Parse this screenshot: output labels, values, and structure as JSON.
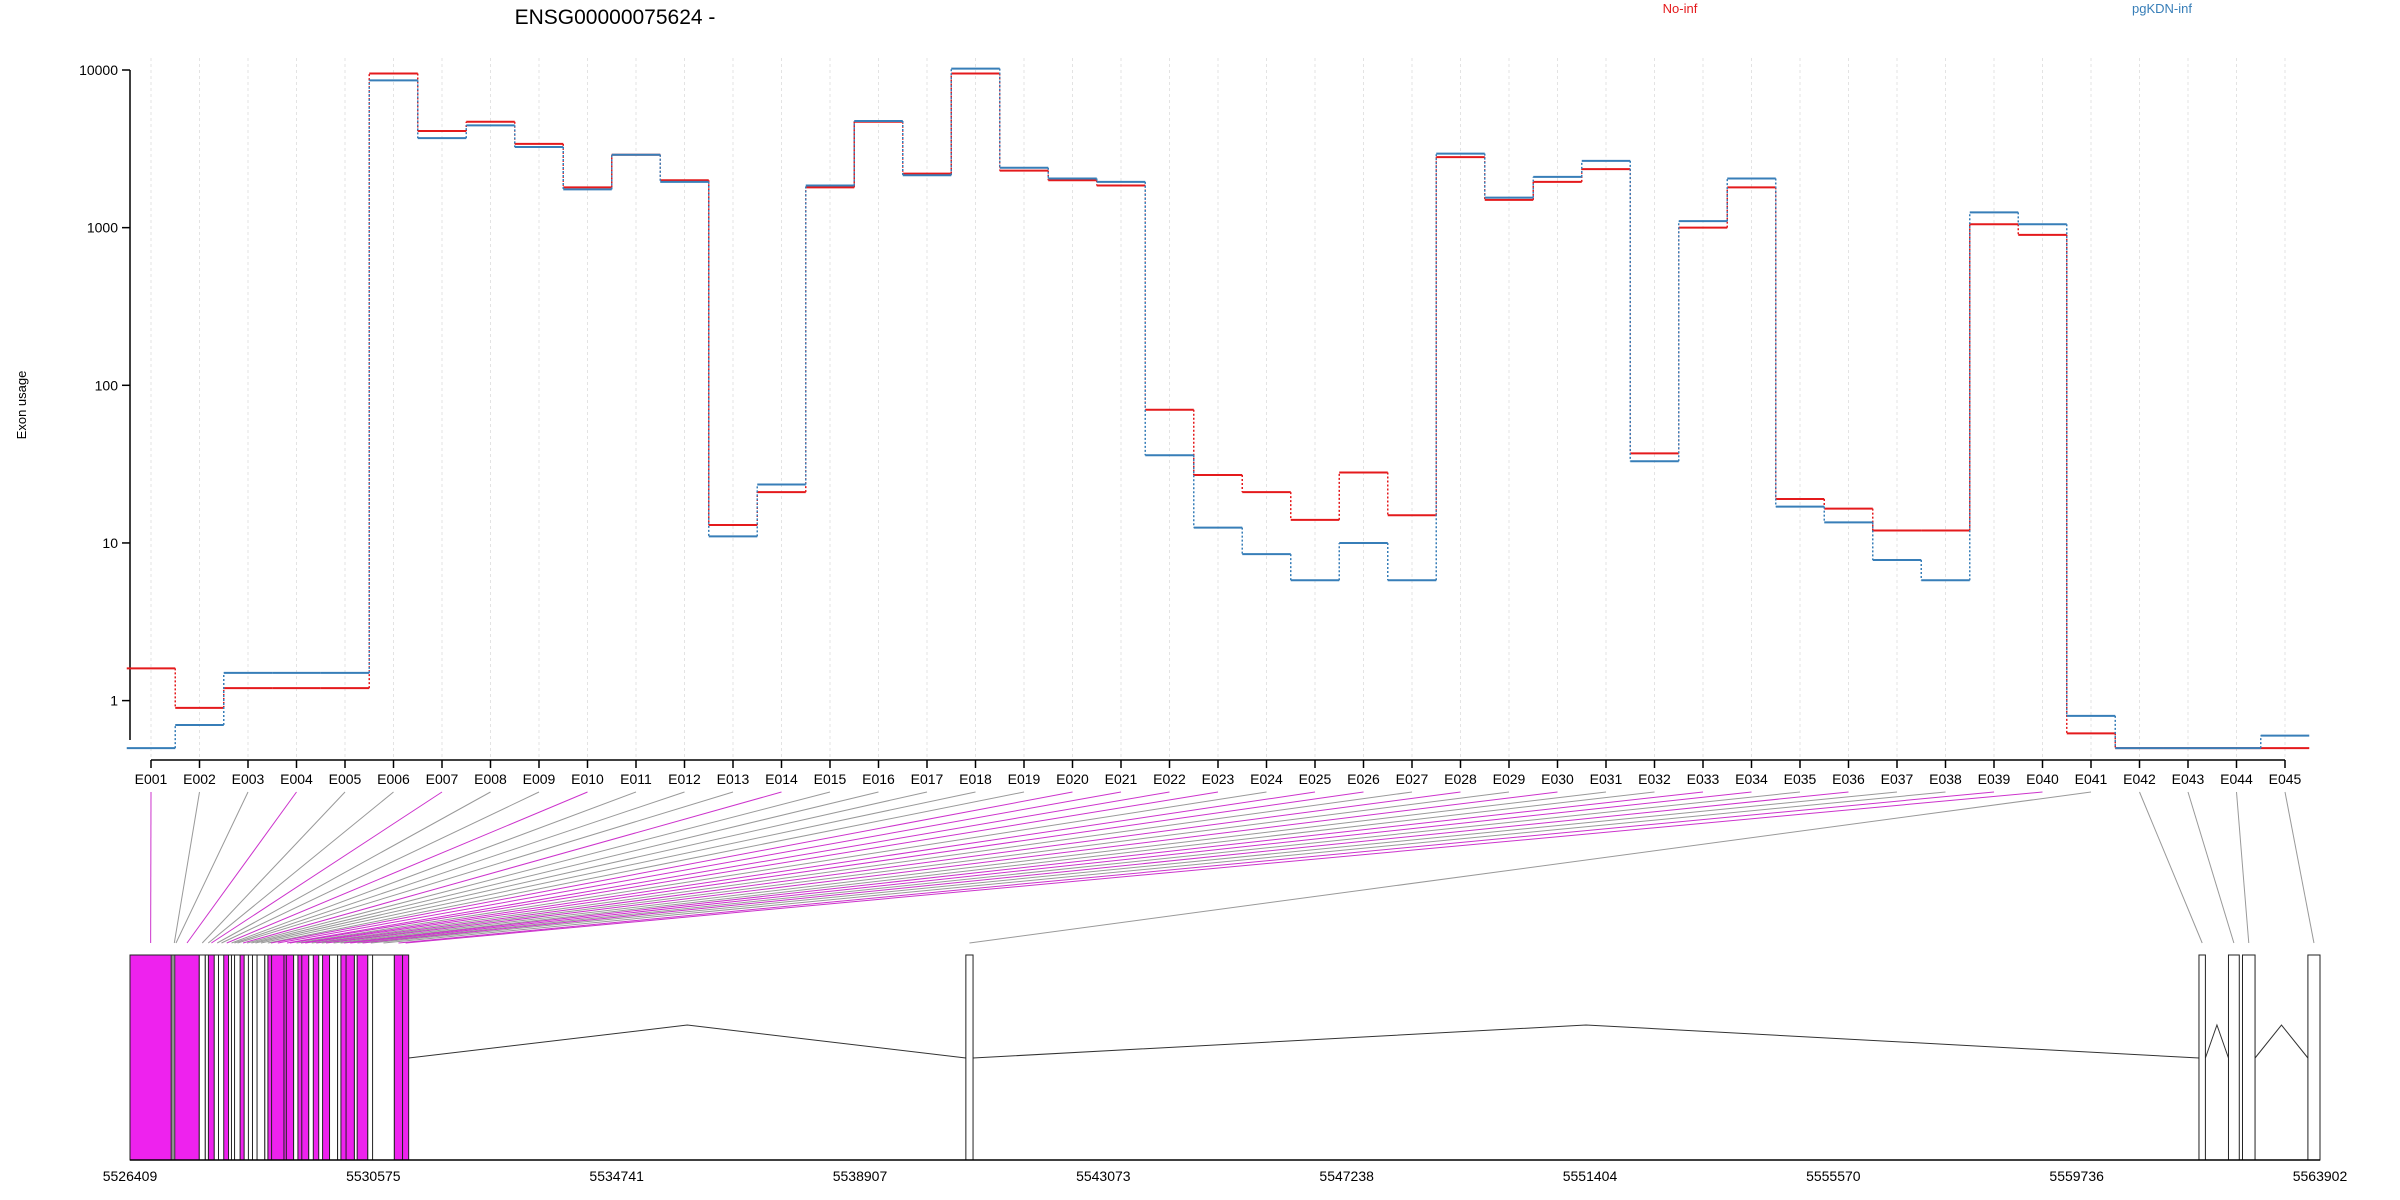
{
  "title": "ENSG00000075624 -",
  "y_label": "Exon usage",
  "legend": [
    {
      "name": "No-inf",
      "color": "#e41a1c"
    },
    {
      "name": "pgKDN-inf",
      "color": "#377eb8"
    }
  ],
  "colors": {
    "exon_highlight": "#ee22ee",
    "exon_plain": "#ffffff",
    "connector_highlight": "#cc33cc",
    "connector_plain": "#999999",
    "grid": "#e3e3e3",
    "axis": "#000000"
  },
  "chart_data": {
    "type": "line",
    "scale": "log",
    "ylim": [
      0.42,
      10000
    ],
    "y_ticks": [
      1,
      10,
      100,
      1000,
      10000
    ],
    "y_tick_labels": [
      "1",
      "10",
      "100",
      "1000",
      "10000"
    ],
    "categories": [
      "E001",
      "E002",
      "E003",
      "E004",
      "E005",
      "E006",
      "E007",
      "E008",
      "E009",
      "E010",
      "E011",
      "E012",
      "E013",
      "E014",
      "E015",
      "E016",
      "E017",
      "E018",
      "E019",
      "E020",
      "E021",
      "E022",
      "E023",
      "E024",
      "E025",
      "E026",
      "E027",
      "E028",
      "E029",
      "E030",
      "E031",
      "E032",
      "E033",
      "E034",
      "E035",
      "E036",
      "E037",
      "E038",
      "E039",
      "E040",
      "E041",
      "E042",
      "E043",
      "E044",
      "E045"
    ],
    "series": [
      {
        "name": "No-inf",
        "color": "#e41a1c",
        "values": [
          1.6,
          0.9,
          1.2,
          1.2,
          1.2,
          9500,
          4100,
          4700,
          3400,
          1800,
          2900,
          2000,
          13,
          21,
          1800,
          4700,
          2200,
          9500,
          2300,
          2000,
          1850,
          70,
          27,
          21,
          14,
          28,
          15,
          2800,
          1500,
          1950,
          2350,
          37,
          1000,
          1800,
          19,
          16.5,
          12,
          12,
          1050,
          900,
          0.62,
          0.5,
          0.5,
          0.5,
          0.5
        ]
      },
      {
        "name": "pgKDN-inf",
        "color": "#377eb8",
        "values": [
          0.5,
          0.7,
          1.5,
          1.5,
          1.5,
          8600,
          3700,
          4450,
          3250,
          1750,
          2900,
          1950,
          11,
          23.5,
          1850,
          4750,
          2150,
          10200,
          2400,
          2050,
          1950,
          36,
          12.5,
          8.5,
          5.8,
          10,
          5.8,
          2950,
          1550,
          2100,
          2650,
          33,
          1100,
          2050,
          17,
          13.5,
          7.8,
          5.8,
          1250,
          1050,
          0.8,
          0.5,
          0.5,
          0.5,
          0.6
        ]
      }
    ]
  },
  "gene_model": {
    "axis_ticks": [
      "5526409",
      "5530575",
      "5534741",
      "5538907",
      "5543073",
      "5547238",
      "5551404",
      "5555570",
      "5559736",
      "5563902"
    ],
    "axis_min": 5526409,
    "axis_max": 5563902,
    "exons": [
      {
        "id": "E001",
        "start": 5526409,
        "end": 5527116,
        "highlighted": true
      },
      {
        "id": "E002",
        "start": 5527116,
        "end": 5527145,
        "highlighted": false
      },
      {
        "id": "E003",
        "start": 5527145,
        "end": 5527175,
        "highlighted": false
      },
      {
        "id": "E004",
        "start": 5527175,
        "end": 5527595,
        "highlighted": true
      },
      {
        "id": "E005",
        "start": 5527595,
        "end": 5527698,
        "highlighted": false
      },
      {
        "id": "E006",
        "start": 5527698,
        "end": 5527751,
        "highlighted": false
      },
      {
        "id": "E007",
        "start": 5527751,
        "end": 5527851,
        "highlighted": true
      },
      {
        "id": "E008",
        "start": 5527851,
        "end": 5527924,
        "highlighted": false
      },
      {
        "id": "E009",
        "start": 5527924,
        "end": 5528014,
        "highlighted": false
      },
      {
        "id": "E010",
        "start": 5528014,
        "end": 5528096,
        "highlighted": true
      },
      {
        "id": "E011",
        "start": 5528096,
        "end": 5528146,
        "highlighted": false
      },
      {
        "id": "E012",
        "start": 5528146,
        "end": 5528199,
        "highlighted": false
      },
      {
        "id": "E013",
        "start": 5528199,
        "end": 5528294,
        "highlighted": false
      },
      {
        "id": "E014",
        "start": 5528294,
        "end": 5528363,
        "highlighted": true
      },
      {
        "id": "E015",
        "start": 5528363,
        "end": 5528436,
        "highlighted": false
      },
      {
        "id": "E016",
        "start": 5528436,
        "end": 5528506,
        "highlighted": false
      },
      {
        "id": "E017",
        "start": 5528506,
        "end": 5528584,
        "highlighted": false
      },
      {
        "id": "E018",
        "start": 5528584,
        "end": 5528717,
        "highlighted": false
      },
      {
        "id": "E019",
        "start": 5528717,
        "end": 5528770,
        "highlighted": false
      },
      {
        "id": "E020",
        "start": 5528770,
        "end": 5528833,
        "highlighted": true
      },
      {
        "id": "E021",
        "start": 5528833,
        "end": 5529045,
        "highlighted": true
      },
      {
        "id": "E022",
        "start": 5529045,
        "end": 5529085,
        "highlighted": true
      },
      {
        "id": "E023",
        "start": 5529085,
        "end": 5529210,
        "highlighted": true
      },
      {
        "id": "E024",
        "start": 5529210,
        "end": 5529284,
        "highlighted": false
      },
      {
        "id": "E025",
        "start": 5529284,
        "end": 5529350,
        "highlighted": true
      },
      {
        "id": "E026",
        "start": 5529350,
        "end": 5529469,
        "highlighted": true
      },
      {
        "id": "E027",
        "start": 5529469,
        "end": 5529547,
        "highlighted": false
      },
      {
        "id": "E028",
        "start": 5529547,
        "end": 5529640,
        "highlighted": true
      },
      {
        "id": "E029",
        "start": 5529640,
        "end": 5529706,
        "highlighted": false
      },
      {
        "id": "E030",
        "start": 5529706,
        "end": 5529825,
        "highlighted": true
      },
      {
        "id": "E031",
        "start": 5529825,
        "end": 5529963,
        "highlighted": false
      },
      {
        "id": "E032",
        "start": 5529963,
        "end": 5530020,
        "highlighted": false
      },
      {
        "id": "E033",
        "start": 5530020,
        "end": 5530108,
        "highlighted": true
      },
      {
        "id": "E034",
        "start": 5530108,
        "end": 5530251,
        "highlighted": true
      },
      {
        "id": "E035",
        "start": 5530251,
        "end": 5530298,
        "highlighted": false
      },
      {
        "id": "E036",
        "start": 5530298,
        "end": 5530480,
        "highlighted": true
      },
      {
        "id": "E037",
        "start": 5530480,
        "end": 5530562,
        "highlighted": false
      },
      {
        "id": "E038",
        "start": 5530562,
        "end": 5530935,
        "highlighted": false
      },
      {
        "id": "E039",
        "start": 5530935,
        "end": 5531075,
        "highlighted": true
      },
      {
        "id": "E040",
        "start": 5531075,
        "end": 5531180,
        "highlighted": true
      },
      {
        "id": "E041",
        "start": 5540719,
        "end": 5540842,
        "highlighted": false
      },
      {
        "id": "E042",
        "start": 5561830,
        "end": 5561940,
        "highlighted": false
      },
      {
        "id": "E043",
        "start": 5562335,
        "end": 5562520,
        "highlighted": false
      },
      {
        "id": "E044",
        "start": 5562575,
        "end": 5562790,
        "highlighted": false
      },
      {
        "id": "E045",
        "start": 5563695,
        "end": 5563902,
        "highlighted": false
      }
    ]
  }
}
